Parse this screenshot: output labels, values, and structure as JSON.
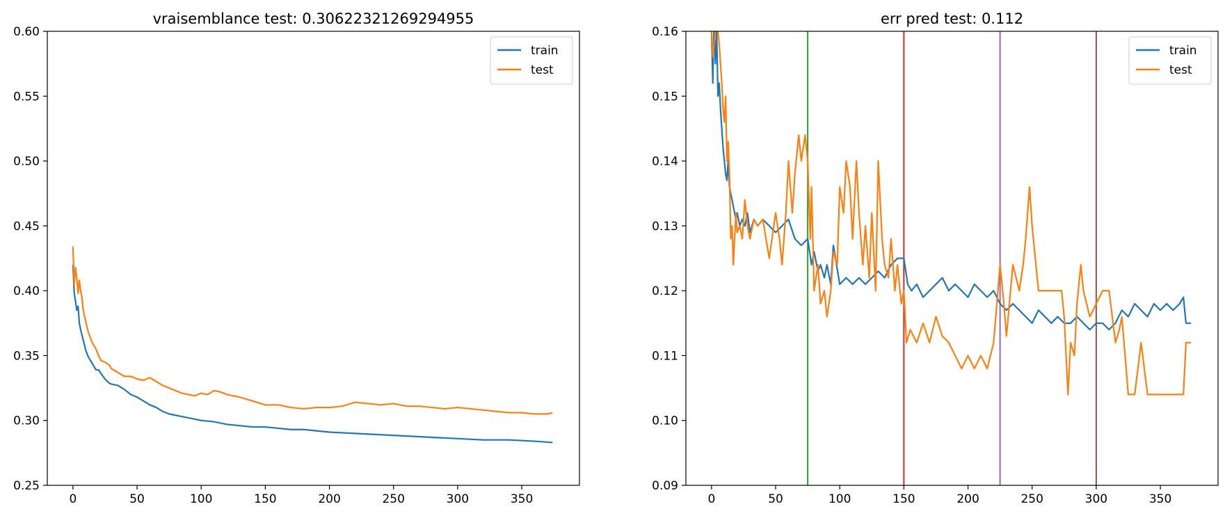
{
  "chart_data": [
    {
      "type": "line",
      "title": "vraisemblance test: 0.30622321269294955",
      "xlabel": "",
      "ylabel": "",
      "xlim": [
        -20,
        395
      ],
      "ylim": [
        0.25,
        0.6
      ],
      "xticks": [
        0,
        50,
        100,
        150,
        200,
        250,
        300,
        350
      ],
      "xtick_labels": [
        "0",
        "50",
        "100",
        "150",
        "200",
        "250",
        "300",
        "350"
      ],
      "yticks": [
        0.25,
        0.3,
        0.35,
        0.4,
        0.45,
        0.5,
        0.55,
        0.6
      ],
      "ytick_labels": [
        "0.25",
        "0.30",
        "0.35",
        "0.40",
        "0.45",
        "0.50",
        "0.55",
        "0.60"
      ],
      "grid": false,
      "legend": "top-right",
      "series": [
        {
          "name": "train",
          "color": "#1f77b4",
          "x": [
            0,
            1,
            2,
            3,
            4,
            5,
            6,
            7,
            8,
            10,
            12,
            15,
            18,
            20,
            22,
            25,
            28,
            30,
            35,
            40,
            45,
            50,
            55,
            60,
            65,
            70,
            75,
            80,
            90,
            100,
            110,
            120,
            130,
            140,
            150,
            160,
            170,
            180,
            190,
            200,
            220,
            240,
            260,
            280,
            300,
            320,
            340,
            360,
            374
          ],
          "y": [
            0.42,
            0.398,
            0.392,
            0.385,
            0.388,
            0.375,
            0.37,
            0.366,
            0.362,
            0.354,
            0.349,
            0.344,
            0.339,
            0.339,
            0.336,
            0.332,
            0.329,
            0.328,
            0.327,
            0.324,
            0.32,
            0.318,
            0.315,
            0.312,
            0.31,
            0.307,
            0.305,
            0.304,
            0.302,
            0.3,
            0.299,
            0.297,
            0.296,
            0.295,
            0.295,
            0.294,
            0.293,
            0.293,
            0.292,
            0.291,
            0.29,
            0.289,
            0.288,
            0.287,
            0.286,
            0.285,
            0.285,
            0.284,
            0.283
          ]
        },
        {
          "name": "test",
          "color": "#ff7f0e",
          "x": [
            0,
            1,
            2,
            3,
            4,
            5,
            6,
            7,
            8,
            10,
            12,
            15,
            18,
            20,
            22,
            25,
            28,
            30,
            35,
            40,
            45,
            50,
            55,
            60,
            65,
            70,
            75,
            80,
            85,
            90,
            95,
            100,
            105,
            110,
            115,
            120,
            130,
            140,
            150,
            160,
            170,
            180,
            190,
            200,
            210,
            220,
            230,
            240,
            250,
            260,
            270,
            280,
            290,
            300,
            310,
            320,
            330,
            340,
            350,
            360,
            370,
            374
          ],
          "y": [
            0.434,
            0.405,
            0.418,
            0.41,
            0.398,
            0.408,
            0.4,
            0.395,
            0.385,
            0.376,
            0.368,
            0.36,
            0.355,
            0.35,
            0.346,
            0.345,
            0.343,
            0.34,
            0.337,
            0.334,
            0.334,
            0.332,
            0.331,
            0.333,
            0.33,
            0.327,
            0.325,
            0.323,
            0.321,
            0.32,
            0.319,
            0.321,
            0.32,
            0.323,
            0.322,
            0.32,
            0.318,
            0.315,
            0.312,
            0.312,
            0.31,
            0.309,
            0.31,
            0.31,
            0.311,
            0.314,
            0.313,
            0.312,
            0.313,
            0.311,
            0.311,
            0.31,
            0.309,
            0.31,
            0.309,
            0.308,
            0.307,
            0.306,
            0.306,
            0.305,
            0.305,
            0.306
          ]
        }
      ]
    },
    {
      "type": "line",
      "title": "err pred test: 0.112",
      "xlabel": "",
      "ylabel": "",
      "xlim": [
        -20,
        395
      ],
      "ylim": [
        0.09,
        0.16
      ],
      "xticks": [
        0,
        50,
        100,
        150,
        200,
        250,
        300,
        350
      ],
      "xtick_labels": [
        "0",
        "50",
        "100",
        "150",
        "200",
        "250",
        "300",
        "350"
      ],
      "yticks": [
        0.09,
        0.1,
        0.11,
        0.12,
        0.13,
        0.14,
        0.15,
        0.16
      ],
      "ytick_labels": [
        "0.09",
        "0.10",
        "0.11",
        "0.12",
        "0.13",
        "0.14",
        "0.15",
        "0.16"
      ],
      "grid": false,
      "legend": "top-right",
      "vlines": [
        {
          "x": 75,
          "color": "#2ca02c"
        },
        {
          "x": 150,
          "color": "#d62728"
        },
        {
          "x": 225,
          "color": "#9467bd"
        },
        {
          "x": 300,
          "color": "#8c564b"
        }
      ],
      "series": [
        {
          "name": "train",
          "color": "#1f77b4",
          "x": [
            0,
            1,
            2,
            3,
            4,
            5,
            6,
            7,
            8,
            9,
            10,
            11,
            12,
            13,
            14,
            15,
            16,
            17,
            18,
            19,
            20,
            22,
            24,
            26,
            28,
            30,
            33,
            36,
            40,
            45,
            50,
            55,
            60,
            65,
            70,
            75,
            78,
            80,
            83,
            85,
            88,
            90,
            93,
            95,
            100,
            105,
            110,
            115,
            120,
            125,
            130,
            135,
            140,
            145,
            150,
            153,
            156,
            160,
            165,
            170,
            175,
            180,
            185,
            190,
            195,
            200,
            205,
            210,
            215,
            220,
            225,
            230,
            235,
            240,
            245,
            250,
            255,
            260,
            265,
            270,
            275,
            280,
            285,
            290,
            295,
            300,
            305,
            310,
            315,
            320,
            325,
            330,
            335,
            340,
            345,
            350,
            355,
            360,
            365,
            368,
            370,
            374
          ],
          "y": [
            0.16,
            0.152,
            0.162,
            0.155,
            0.16,
            0.15,
            0.152,
            0.148,
            0.145,
            0.142,
            0.14,
            0.138,
            0.137,
            0.14,
            0.136,
            0.135,
            0.134,
            0.133,
            0.132,
            0.131,
            0.132,
            0.13,
            0.131,
            0.13,
            0.132,
            0.129,
            0.131,
            0.13,
            0.131,
            0.13,
            0.129,
            0.13,
            0.131,
            0.128,
            0.127,
            0.128,
            0.124,
            0.126,
            0.123,
            0.124,
            0.122,
            0.124,
            0.121,
            0.127,
            0.121,
            0.122,
            0.121,
            0.122,
            0.121,
            0.122,
            0.123,
            0.122,
            0.124,
            0.125,
            0.125,
            0.121,
            0.12,
            0.121,
            0.119,
            0.12,
            0.121,
            0.122,
            0.12,
            0.121,
            0.12,
            0.119,
            0.121,
            0.12,
            0.119,
            0.12,
            0.118,
            0.117,
            0.118,
            0.117,
            0.116,
            0.115,
            0.117,
            0.116,
            0.115,
            0.116,
            0.115,
            0.115,
            0.116,
            0.115,
            0.114,
            0.115,
            0.115,
            0.114,
            0.115,
            0.117,
            0.116,
            0.118,
            0.117,
            0.116,
            0.118,
            0.117,
            0.118,
            0.117,
            0.118,
            0.119,
            0.115,
            0.115
          ]
        },
        {
          "name": "test",
          "color": "#ff7f0e",
          "x": [
            0,
            1,
            2,
            3,
            4,
            5,
            6,
            7,
            8,
            9,
            10,
            11,
            12,
            13,
            14,
            15,
            16,
            17,
            18,
            19,
            20,
            22,
            24,
            26,
            28,
            30,
            33,
            36,
            40,
            45,
            50,
            53,
            55,
            58,
            60,
            63,
            65,
            68,
            70,
            73,
            75,
            77,
            78,
            80,
            83,
            85,
            88,
            90,
            93,
            95,
            98,
            100,
            103,
            105,
            108,
            110,
            113,
            115,
            118,
            120,
            123,
            125,
            128,
            130,
            133,
            135,
            138,
            140,
            143,
            145,
            148,
            150,
            152,
            155,
            160,
            165,
            170,
            175,
            180,
            185,
            190,
            195,
            200,
            205,
            210,
            215,
            220,
            225,
            228,
            230,
            235,
            240,
            243,
            245,
            248,
            250,
            255,
            260,
            265,
            270,
            273,
            275,
            278,
            280,
            283,
            285,
            288,
            290,
            295,
            300,
            305,
            310,
            315,
            318,
            320,
            325,
            330,
            335,
            340,
            345,
            350,
            355,
            360,
            365,
            368,
            370,
            374
          ],
          "y": [
            0.16,
            0.156,
            0.158,
            0.16,
            0.162,
            0.16,
            0.158,
            0.155,
            0.152,
            0.148,
            0.146,
            0.15,
            0.14,
            0.143,
            0.138,
            0.128,
            0.13,
            0.124,
            0.128,
            0.132,
            0.129,
            0.13,
            0.128,
            0.134,
            0.13,
            0.128,
            0.131,
            0.13,
            0.131,
            0.125,
            0.132,
            0.128,
            0.124,
            0.132,
            0.14,
            0.132,
            0.138,
            0.144,
            0.14,
            0.144,
            0.14,
            0.128,
            0.136,
            0.12,
            0.124,
            0.118,
            0.12,
            0.116,
            0.12,
            0.126,
            0.124,
            0.136,
            0.132,
            0.14,
            0.136,
            0.128,
            0.14,
            0.132,
            0.124,
            0.13,
            0.122,
            0.132,
            0.12,
            0.14,
            0.128,
            0.124,
            0.122,
            0.128,
            0.12,
            0.124,
            0.118,
            0.12,
            0.112,
            0.114,
            0.112,
            0.115,
            0.112,
            0.116,
            0.113,
            0.112,
            0.11,
            0.108,
            0.11,
            0.108,
            0.11,
            0.108,
            0.112,
            0.124,
            0.118,
            0.113,
            0.124,
            0.12,
            0.124,
            0.128,
            0.136,
            0.13,
            0.12,
            0.12,
            0.12,
            0.12,
            0.12,
            0.116,
            0.104,
            0.112,
            0.11,
            0.118,
            0.124,
            0.12,
            0.116,
            0.118,
            0.12,
            0.12,
            0.112,
            0.114,
            0.116,
            0.104,
            0.104,
            0.112,
            0.104,
            0.104,
            0.104,
            0.104,
            0.104,
            0.104,
            0.104,
            0.112,
            0.112
          ]
        }
      ]
    }
  ]
}
